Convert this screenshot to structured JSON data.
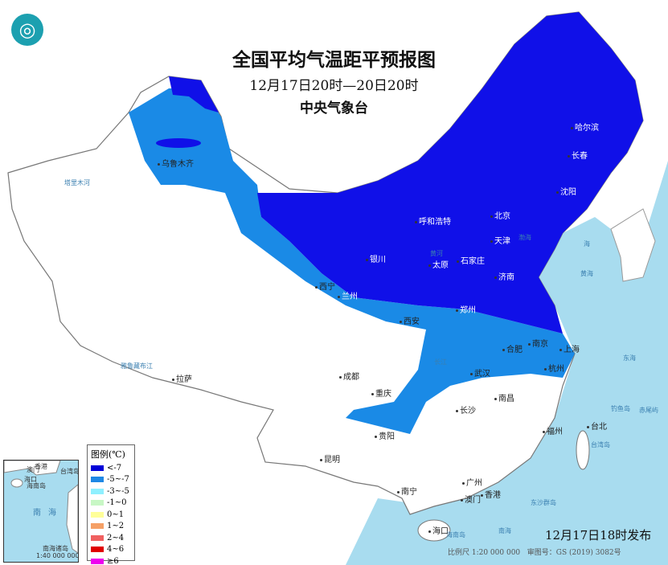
{
  "title": "全国平均气温距平预报图",
  "period": "12月17日20时—20日20时",
  "issuer": "中央气象台",
  "issued": "12月17日18时发布",
  "scale": "比例尺 1:20 000 000",
  "map_review": "审图号：GS (2019) 3082号",
  "colors": {
    "dark_blue": "#1010e8",
    "mid_blue": "#1a8ae6",
    "sea": "#a8dcef",
    "land": "#ffffff"
  },
  "legend": {
    "title": "图例(℃)",
    "items": [
      {
        "label": "<-7",
        "color": "#0000d8"
      },
      {
        "label": "-5~-7",
        "color": "#1e88e5"
      },
      {
        "label": "-3~-5",
        "color": "#8ff0ff"
      },
      {
        "label": "-1~0",
        "color": "#c8f7c5"
      },
      {
        "label": "0~1",
        "color": "#ffff99"
      },
      {
        "label": "1~2",
        "color": "#f5a066"
      },
      {
        "label": "2~4",
        "color": "#f06060"
      },
      {
        "label": "4~6",
        "color": "#e00000"
      },
      {
        "label": "≥6",
        "color": "#ee00ee"
      }
    ]
  },
  "cities": [
    "乌鲁木齐",
    "哈尔滨",
    "长春",
    "沈阳",
    "呼和浩特",
    "北京",
    "天津",
    "石家庄",
    "太原",
    "济南",
    "银川",
    "西宁",
    "兰州",
    "郑州",
    "西安",
    "合肥",
    "南京",
    "上海",
    "杭州",
    "武汉",
    "成都",
    "重庆",
    "长沙",
    "南昌",
    "贵阳",
    "福州",
    "台北",
    "昆明",
    "南宁",
    "广州",
    "香港",
    "澳门",
    "海口",
    "拉萨"
  ],
  "geo_labels": [
    "渤海",
    "黄海",
    "东海",
    "南海",
    "海南岛",
    "台湾岛",
    "钓鱼岛",
    "赤尾屿",
    "东沙群岛",
    "塔里木河",
    "雅鲁藏布江",
    "长江",
    "黄河",
    "海"
  ],
  "inset": {
    "labels": [
      "澳门",
      "香港",
      "台湾岛",
      "海口",
      "海南岛",
      "南",
      "海",
      "南海诸岛"
    ],
    "scale": "1:40 000 000"
  }
}
